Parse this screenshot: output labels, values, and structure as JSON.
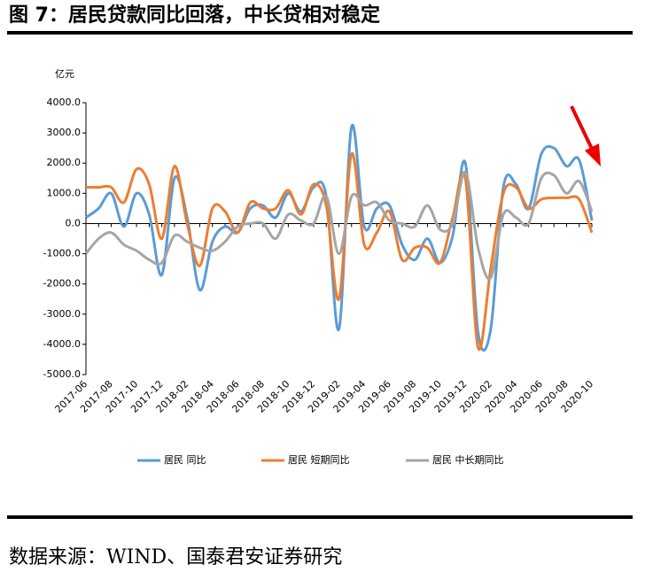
{
  "chart_data": {
    "type": "line",
    "title": "图 7：居民贷款同比回落，中长贷相对稳定",
    "y_label": "亿元",
    "source": "数据来源：WIND、国泰君安证券研究",
    "categories": [
      "2017-06",
      null,
      "2017-08",
      null,
      "2017-10",
      null,
      "2017-12",
      null,
      "2018-02",
      null,
      "2018-04",
      null,
      "2018-06",
      null,
      "2018-08",
      null,
      "2018-10",
      null,
      "2018-12",
      null,
      "2019-02",
      null,
      "2019-04",
      null,
      "2019-06",
      null,
      "2019-08",
      null,
      "2019-10",
      null,
      "2019-12",
      null,
      "2020-02",
      null,
      "2020-04",
      null,
      "2020-06",
      null,
      "2020-08",
      null,
      "2020-10"
    ],
    "series": [
      {
        "name": "居民  同比",
        "color": "#5b9bd5",
        "values": [
          200,
          500,
          1000,
          -100,
          1000,
          300,
          -1700,
          1500,
          200,
          -2200,
          -600,
          -100,
          -300,
          500,
          600,
          200,
          1000,
          400,
          1200,
          900,
          -3500,
          3200,
          -100,
          500,
          600,
          -700,
          -1200,
          -500,
          -1300,
          -400,
          2000,
          -3600,
          -3500,
          1200,
          1300,
          500,
          2300,
          2500,
          1900,
          2100,
          100
        ]
      },
      {
        "name": "居民  短期同比",
        "color": "#ed7d31",
        "values": [
          1200,
          1200,
          1200,
          700,
          1800,
          1300,
          -500,
          1900,
          0,
          -1400,
          500,
          400,
          -300,
          700,
          500,
          500,
          1100,
          300,
          1300,
          600,
          -2500,
          2300,
          -700,
          -300,
          400,
          -1200,
          -800,
          -800,
          -1300,
          200,
          1500,
          -4100,
          -1500,
          1000,
          1200,
          500,
          800,
          850,
          850,
          800,
          -300
        ]
      },
      {
        "name": "居民  中长期同比",
        "color": "#a5a5a5",
        "values": [
          -1000,
          -500,
          -300,
          -700,
          -900,
          -1200,
          -1300,
          -400,
          -600,
          -800,
          -900,
          -600,
          -100,
          0,
          0,
          -500,
          300,
          100,
          0,
          900,
          -1000,
          900,
          600,
          700,
          100,
          0,
          -100,
          600,
          -200,
          0,
          1700,
          -800,
          -1800,
          300,
          200,
          0,
          1500,
          1600,
          1000,
          1400,
          400
        ]
      }
    ],
    "ylim": [
      -5000,
      4000
    ],
    "yticks": [
      {
        "value": -5000,
        "label": "-5000.0"
      },
      {
        "value": -4000,
        "label": "-4000.0"
      },
      {
        "value": -3000,
        "label": "-3000.0"
      },
      {
        "value": -2000,
        "label": "-2000.0"
      },
      {
        "value": -1000,
        "label": "-1000.0"
      },
      {
        "value": 0,
        "label": "0.0"
      },
      {
        "value": 1000,
        "label": "1000.0"
      },
      {
        "value": 2000,
        "label": "2000.0"
      },
      {
        "value": 3000,
        "label": "3000.0"
      },
      {
        "value": 4000,
        "label": "4000.0"
      }
    ]
  }
}
